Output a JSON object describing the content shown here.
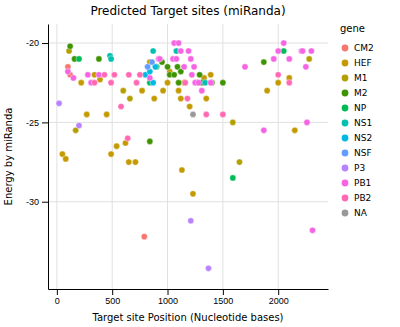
{
  "chart_data": {
    "type": "scatter",
    "title": "Predicted Target sites (miRanda)",
    "xlabel": "Target site Position (Nucleotide bases)",
    "ylabel": "Energy by miRanda",
    "legend_title": "gene",
    "xlim": [
      -80,
      2450
    ],
    "ylim": [
      -35.5,
      -18.8
    ],
    "xticks": [
      0,
      500,
      1000,
      1500,
      2000
    ],
    "yticks": [
      -20,
      -25,
      -30
    ],
    "grid": true,
    "legend": "right",
    "marker": "circle",
    "series": [
      {
        "name": "CM2",
        "color": "#F8766D",
        "x": [
          790,
          100,
          120
        ],
        "values": [
          -32.2,
          -21.5,
          -22.0
        ]
      },
      {
        "name": "HEF",
        "color": "#C49A00",
        "x": [
          50,
          80,
          220,
          270,
          340,
          390,
          450,
          490,
          540,
          620,
          650,
          710,
          770,
          840,
          880,
          960,
          1000,
          1020,
          1100,
          1120,
          1150,
          1200,
          1270,
          1330,
          1350,
          1390,
          1130,
          1230,
          1900,
          2000,
          2100,
          2150
        ],
        "values": [
          -27.0,
          -27.3,
          -22.5,
          -24.5,
          -22.0,
          -22.3,
          -24.5,
          -27.0,
          -26.5,
          -26.3,
          -27.5,
          -27.5,
          -23.0,
          -21.2,
          -23.5,
          -23.0,
          -22.5,
          -21.8,
          -23.0,
          -23.5,
          -22.5,
          -24.0,
          -22.5,
          -22.2,
          -23.5,
          -22.0,
          -28.0,
          -29.5,
          -23.0,
          -22.5,
          -22.2,
          -25.5
        ]
      },
      {
        "name": "M1",
        "color": "#B3A000",
        "x": [
          110,
          170,
          600,
          660,
          1590,
          1650,
          2280
        ],
        "values": [
          -20.5,
          -25.5,
          -23.0,
          -23.5,
          -25.0,
          -27.5,
          -21.0
        ]
      },
      {
        "name": "M2",
        "color": "#3D9400",
        "x": [
          120,
          160,
          380,
          840,
          900,
          950,
          1000,
          1020,
          1060,
          1090,
          1100,
          1120,
          1290,
          1310,
          1400,
          1500,
          1870
        ],
        "values": [
          -20.2,
          -21.0,
          -21.0,
          -26.2,
          -21.5,
          -21.2,
          -21.5,
          -22.0,
          -22.0,
          -21.5,
          -22.5,
          -21.8,
          -22.0,
          -22.5,
          -22.5,
          -22.5,
          -21.2
        ]
      },
      {
        "name": "NP",
        "color": "#00BC56",
        "x": [
          200,
          840,
          900,
          1590,
          2050
        ],
        "values": [
          -21.0,
          -22.5,
          -21.5,
          -28.5,
          -20.5
        ]
      },
      {
        "name": "NS1",
        "color": "#00C0AF",
        "x": [
          480,
          490,
          870,
          1080,
          1340
        ],
        "values": [
          -20.8,
          -21.0,
          -20.5,
          -20.5,
          -22.5
        ]
      },
      {
        "name": "NS2",
        "color": "#00B9E3",
        "x": [
          800,
          840,
          870,
          890
        ],
        "values": [
          -22.0,
          -21.8,
          -22.5,
          -21.5
        ]
      },
      {
        "name": "NSF",
        "color": "#619CFF",
        "x": [
          820,
          860
        ],
        "values": [
          -21.5,
          -21.2
        ]
      },
      {
        "name": "P3",
        "color": "#B983FF",
        "x": [
          20,
          200,
          1210,
          1370
        ],
        "values": [
          -23.8,
          -25.2,
          -31.2,
          -34.2
        ]
      },
      {
        "name": "PB1",
        "color": "#F564E3",
        "x": [
          100,
          150,
          280,
          310,
          380,
          840,
          920,
          930,
          1050,
          1060,
          1080,
          1100,
          1120,
          1150,
          1190,
          1210,
          1220,
          1240,
          1250,
          1280,
          1310,
          1390,
          1700,
          1870,
          1960,
          2000,
          2050,
          2100,
          2210,
          2220,
          2250,
          2260,
          2300,
          2310
        ],
        "values": [
          -21.8,
          -22.2,
          -22.0,
          -22.5,
          -22.0,
          -22.2,
          -21.0,
          -21.0,
          -21.0,
          -20.0,
          -21.0,
          -20.0,
          -20.5,
          -21.5,
          -20.5,
          -21.0,
          -22.0,
          -21.5,
          -22.5,
          -22.5,
          -23.0,
          -22.5,
          -21.5,
          -25.5,
          -21.0,
          -20.5,
          -20.0,
          -21.0,
          -20.5,
          -20.5,
          -21.5,
          -25.0,
          -20.5,
          -31.8
        ]
      },
      {
        "name": "PB2",
        "color": "#FF69B4",
        "x": [
          340,
          430,
          490,
          520,
          580,
          640,
          650,
          720,
          750,
          1160,
          1180,
          1350,
          1500,
          2000,
          2100
        ],
        "values": [
          -22.5,
          -22.0,
          -22.5,
          -22.0,
          -24.0,
          -26.0,
          -22.0,
          -22.5,
          -22.0,
          -22.5,
          -23.5,
          -24.5,
          -24.5,
          -22.0,
          -22.5
        ]
      },
      {
        "name": "NA",
        "color": "#999999",
        "x": [
          1230
        ],
        "values": [
          -24.5
        ]
      }
    ]
  }
}
